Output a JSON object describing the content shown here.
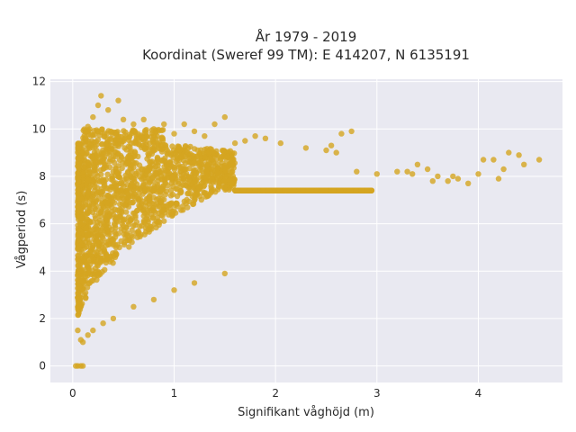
{
  "chart_data": {
    "type": "scatter",
    "title": [
      "År 1979 - 2019",
      "Koordinat (Sweref 99 TM): E 414207, N 6135191"
    ],
    "xlabel": "Signifikant våghöjd (m)",
    "ylabel": "Vågperiod (s)",
    "xlim": [
      -0.22,
      4.83
    ],
    "ylim": [
      -0.7,
      12.1
    ],
    "xticks": [
      0,
      1,
      2,
      3,
      4
    ],
    "yticks": [
      0,
      2,
      4,
      6,
      8,
      10,
      12
    ],
    "grid": true,
    "legend": "none",
    "marker_color": "#d4a520",
    "plot_background": "#e9e9f1",
    "grid_color": "#ffffff",
    "points": [
      [
        0.03,
        0.0
      ],
      [
        0.05,
        0.0
      ],
      [
        0.08,
        0.0
      ],
      [
        0.1,
        0.0
      ],
      [
        0.05,
        1.5
      ],
      [
        0.08,
        1.1
      ],
      [
        0.1,
        1.0
      ],
      [
        0.15,
        1.3
      ],
      [
        0.1,
        9.0
      ],
      [
        0.15,
        9.5
      ],
      [
        0.15,
        10.1
      ],
      [
        0.2,
        10.5
      ],
      [
        0.25,
        11.0
      ],
      [
        0.28,
        11.4
      ],
      [
        0.35,
        10.8
      ],
      [
        0.45,
        11.2
      ],
      [
        0.5,
        10.4
      ],
      [
        0.6,
        10.2
      ],
      [
        0.7,
        10.4
      ],
      [
        0.8,
        10.0
      ],
      [
        0.9,
        10.2
      ],
      [
        1.0,
        9.8
      ],
      [
        1.1,
        10.2
      ],
      [
        1.2,
        9.9
      ],
      [
        1.3,
        9.7
      ],
      [
        1.4,
        10.2
      ],
      [
        1.5,
        10.5
      ],
      [
        1.6,
        9.4
      ],
      [
        1.7,
        9.5
      ],
      [
        1.8,
        9.7
      ],
      [
        1.9,
        9.6
      ],
      [
        2.05,
        9.4
      ],
      [
        2.3,
        9.2
      ],
      [
        2.5,
        9.1
      ],
      [
        2.55,
        9.3
      ],
      [
        2.6,
        9.0
      ],
      [
        2.65,
        9.8
      ],
      [
        2.75,
        9.9
      ],
      [
        2.8,
        8.2
      ],
      [
        3.0,
        8.1
      ],
      [
        3.2,
        8.2
      ],
      [
        3.3,
        8.2
      ],
      [
        3.35,
        8.1
      ],
      [
        3.4,
        8.5
      ],
      [
        3.5,
        8.3
      ],
      [
        3.55,
        7.8
      ],
      [
        3.6,
        8.0
      ],
      [
        3.7,
        7.8
      ],
      [
        3.75,
        8.0
      ],
      [
        3.8,
        7.9
      ],
      [
        3.9,
        7.7
      ],
      [
        4.0,
        8.1
      ],
      [
        4.05,
        8.7
      ],
      [
        4.15,
        8.7
      ],
      [
        4.2,
        7.9
      ],
      [
        4.25,
        8.3
      ],
      [
        4.3,
        9.0
      ],
      [
        4.4,
        8.9
      ],
      [
        4.45,
        8.5
      ],
      [
        4.6,
        8.7
      ],
      [
        1.5,
        3.9
      ],
      [
        1.2,
        3.5
      ],
      [
        1.0,
        3.2
      ],
      [
        0.8,
        2.8
      ],
      [
        0.6,
        2.5
      ],
      [
        0.4,
        2.0
      ],
      [
        0.3,
        1.8
      ],
      [
        0.2,
        1.5
      ]
    ]
  }
}
